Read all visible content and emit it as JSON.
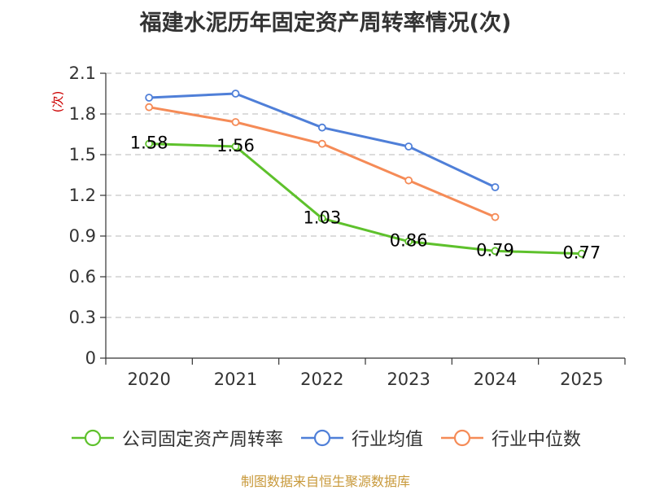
{
  "title": "福建水泥历年固定资产周转率情况(次)",
  "source": "制图数据来自恒生聚源数据库",
  "chart_data": {
    "type": "line",
    "title": "福建水泥历年固定资产周转率情况(次)",
    "xlabel": "",
    "ylabel": "(次)",
    "categories": [
      "2020",
      "2021",
      "2022",
      "2023",
      "2024",
      "2025"
    ],
    "ylim": [
      0,
      2.1
    ],
    "yticks": [
      0,
      0.3,
      0.6,
      0.9,
      1.2,
      1.5,
      1.8,
      2.1
    ],
    "ytick_labels": [
      "0",
      "0.3",
      "0.6",
      "0.9",
      "1.2",
      "1.5",
      "1.8",
      "2.1"
    ],
    "grid": true,
    "legend_position": "bottom",
    "series": [
      {
        "name": "公司固定资产周转率",
        "color": "#5ec12c",
        "values": [
          1.58,
          1.56,
          1.03,
          0.86,
          0.79,
          0.77
        ],
        "labels": [
          "1.58",
          "1.56",
          "1.03",
          "0.86",
          "0.79",
          "0.77"
        ],
        "show_labels": true
      },
      {
        "name": "行业均值",
        "color": "#4f7fd8",
        "values": [
          1.92,
          1.95,
          1.7,
          1.56,
          1.26,
          null
        ],
        "show_labels": false
      },
      {
        "name": "行业中位数",
        "color": "#f58b57",
        "values": [
          1.85,
          1.74,
          1.58,
          1.31,
          1.04,
          null
        ],
        "show_labels": false
      }
    ]
  }
}
